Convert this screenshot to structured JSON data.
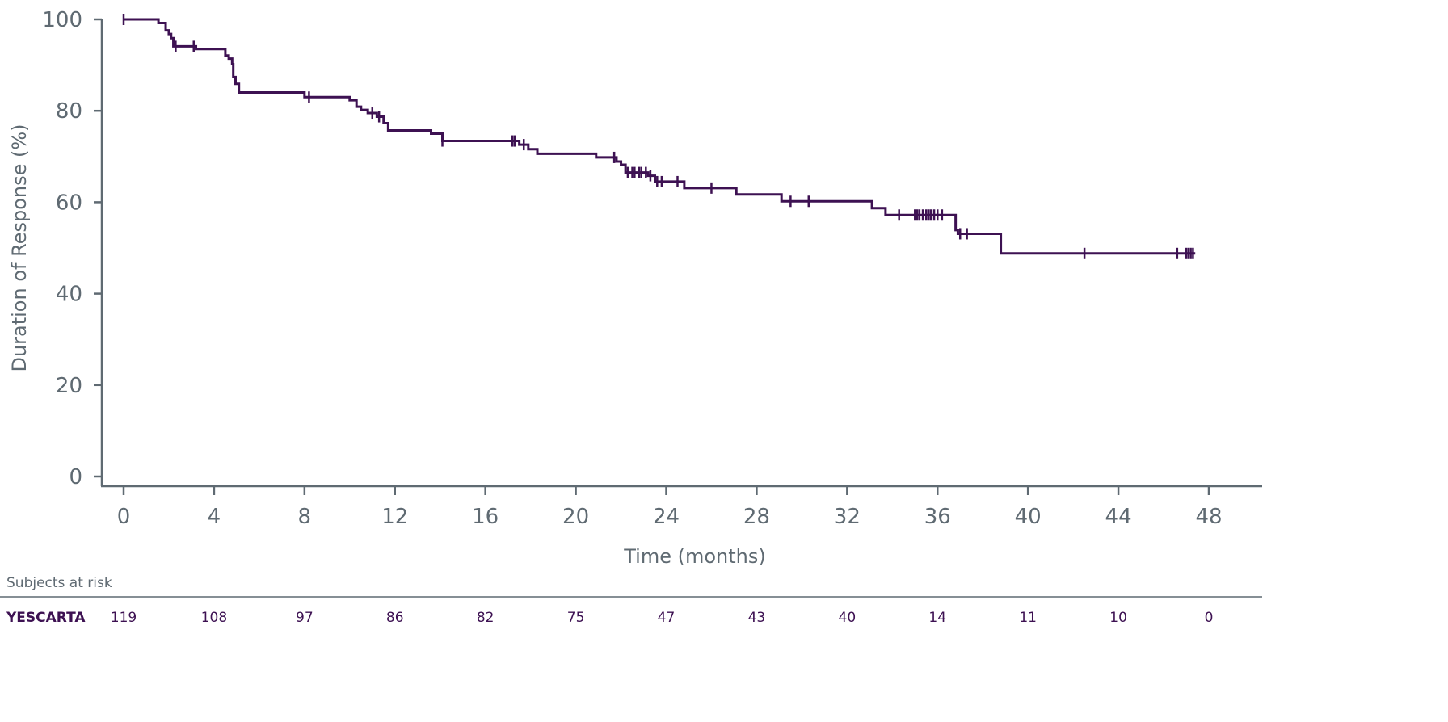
{
  "chart_data": {
    "type": "line",
    "subtype": "kaplan-meier",
    "xlabel": "Time (months)",
    "ylabel": "Duration of Response (%)",
    "xlim": [
      0,
      48
    ],
    "ylim": [
      0,
      100
    ],
    "xticks": [
      0,
      4,
      8,
      12,
      16,
      20,
      24,
      28,
      32,
      36,
      40,
      44,
      48
    ],
    "yticks": [
      0,
      20,
      40,
      60,
      80,
      100
    ],
    "grid": false,
    "series": [
      {
        "name": "YESCARTA",
        "color": "#3d1152",
        "end_time": 47.4,
        "steps": [
          [
            0,
            100
          ],
          [
            1.54,
            99.2
          ],
          [
            1.86,
            97.6
          ],
          [
            2.0,
            96.8
          ],
          [
            2.1,
            95.9
          ],
          [
            2.2,
            94.1
          ],
          [
            3.2,
            93.5
          ],
          [
            4.5,
            92.1
          ],
          [
            4.65,
            91.4
          ],
          [
            4.8,
            90.2
          ],
          [
            4.85,
            87.4
          ],
          [
            4.95,
            85.9
          ],
          [
            5.1,
            84.0
          ],
          [
            8.0,
            83.0
          ],
          [
            10.0,
            82.3
          ],
          [
            10.3,
            80.9
          ],
          [
            10.5,
            80.2
          ],
          [
            10.8,
            79.5
          ],
          [
            11.2,
            78.7
          ],
          [
            11.5,
            77.3
          ],
          [
            11.7,
            75.7
          ],
          [
            13.6,
            75.0
          ],
          [
            14.1,
            73.4
          ],
          [
            17.5,
            72.6
          ],
          [
            17.9,
            71.6
          ],
          [
            18.3,
            70.6
          ],
          [
            20.9,
            69.8
          ],
          [
            21.8,
            68.9
          ],
          [
            22.0,
            68.2
          ],
          [
            22.2,
            66.5
          ],
          [
            23.2,
            65.8
          ],
          [
            23.5,
            64.5
          ],
          [
            24.8,
            63.1
          ],
          [
            27.1,
            61.7
          ],
          [
            29.1,
            60.2
          ],
          [
            33.1,
            58.7
          ],
          [
            33.7,
            57.2
          ],
          [
            36.8,
            53.9
          ],
          [
            36.9,
            53.1
          ],
          [
            38.8,
            48.8
          ]
        ],
        "censored": [
          0,
          2.3,
          3.1,
          8.2,
          11.0,
          11.3,
          14.1,
          17.2,
          17.3,
          17.7,
          21.7,
          22.3,
          22.5,
          22.6,
          22.8,
          22.9,
          23.1,
          23.3,
          23.6,
          23.8,
          24.5,
          26.0,
          29.5,
          30.3,
          34.3,
          35.0,
          35.1,
          35.2,
          35.35,
          35.5,
          35.6,
          35.7,
          35.85,
          36.0,
          36.2,
          37.0,
          37.3,
          42.5,
          46.6,
          47.0,
          47.1,
          47.2,
          47.3
        ]
      }
    ],
    "risk_table": {
      "title": "Subjects at risk",
      "rows": [
        {
          "label": "YESCARTA",
          "values": [
            "119",
            "108",
            "97",
            "86",
            "82",
            "75",
            "47",
            "43",
            "40",
            "14",
            "11",
            "10",
            "0"
          ]
        }
      ]
    },
    "colors": {
      "line": "#3d1152",
      "axis": "#5f6a72",
      "text": "#5f6a72",
      "risk_text": "#3d1152"
    }
  }
}
